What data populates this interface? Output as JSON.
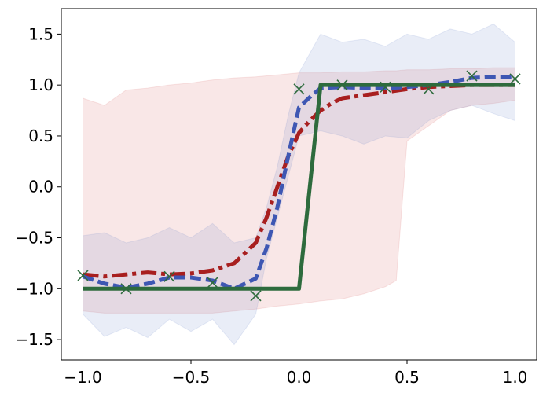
{
  "chart_data": {
    "type": "line",
    "title": "",
    "xlabel": "",
    "ylabel": "",
    "xlim": [
      -1.1,
      1.1
    ],
    "ylim": [
      -1.7,
      1.75
    ],
    "grid": false,
    "x_ticks": [
      -1.0,
      -0.5,
      0.0,
      0.5,
      1.0
    ],
    "y_ticks": [
      -1.5,
      -1.0,
      -0.5,
      0.0,
      0.5,
      1.0,
      1.5
    ],
    "x_tick_labels": [
      "−1.0",
      "−0.5",
      "0.0",
      "0.5",
      "1.0"
    ],
    "y_tick_labels": [
      "−1.5",
      "−1.0",
      "−0.5",
      "0.0",
      "0.5",
      "1.0",
      "1.5"
    ],
    "bands": [
      {
        "color": "#d95f5f",
        "opacity": 0.15,
        "x": [
          -1.0,
          -0.9,
          -0.8,
          -0.7,
          -0.6,
          -0.5,
          -0.4,
          -0.3,
          -0.2,
          -0.1,
          0.0,
          0.1,
          0.2,
          0.3,
          0.4,
          0.45,
          0.5,
          0.6,
          0.7,
          0.8,
          0.9,
          1.0
        ],
        "upper": [
          0.87,
          0.8,
          0.95,
          0.97,
          1.0,
          1.02,
          1.05,
          1.07,
          1.08,
          1.1,
          1.12,
          1.12,
          1.13,
          1.13,
          1.14,
          1.14,
          1.15,
          1.15,
          1.16,
          1.16,
          1.17,
          1.17
        ],
        "lower": [
          -1.22,
          -1.24,
          -1.24,
          -1.24,
          -1.24,
          -1.24,
          -1.24,
          -1.22,
          -1.2,
          -1.17,
          -1.15,
          -1.12,
          -1.1,
          -1.05,
          -0.98,
          -0.92,
          0.45,
          0.6,
          0.75,
          0.8,
          0.82,
          0.85
        ]
      },
      {
        "color": "#6a85c8",
        "opacity": 0.15,
        "x": [
          -1.0,
          -0.9,
          -0.8,
          -0.7,
          -0.6,
          -0.5,
          -0.4,
          -0.3,
          -0.2,
          -0.15,
          -0.1,
          -0.05,
          0.0,
          0.1,
          0.2,
          0.3,
          0.4,
          0.5,
          0.6,
          0.7,
          0.8,
          0.9,
          1.0
        ],
        "upper": [
          -0.48,
          -0.45,
          -0.55,
          -0.5,
          -0.4,
          -0.5,
          -0.36,
          -0.55,
          -0.5,
          -0.2,
          0.2,
          0.7,
          1.12,
          1.5,
          1.42,
          1.45,
          1.38,
          1.5,
          1.45,
          1.55,
          1.5,
          1.6,
          1.42
        ],
        "lower": [
          -1.25,
          -1.47,
          -1.38,
          -1.48,
          -1.3,
          -1.42,
          -1.3,
          -1.55,
          -1.25,
          -0.7,
          -0.3,
          0.1,
          0.5,
          0.55,
          0.5,
          0.42,
          0.5,
          0.48,
          0.65,
          0.75,
          0.8,
          0.72,
          0.65
        ]
      }
    ],
    "series": [
      {
        "color": "#a81f1f",
        "style": "dash-dot",
        "x": [
          -1.0,
          -0.9,
          -0.8,
          -0.7,
          -0.6,
          -0.5,
          -0.4,
          -0.3,
          -0.2,
          -0.15,
          -0.1,
          -0.05,
          0.0,
          0.05,
          0.1,
          0.15,
          0.2,
          0.3,
          0.4,
          0.5,
          0.6,
          0.7,
          0.8,
          0.9,
          1.0
        ],
        "y": [
          -0.86,
          -0.88,
          -0.86,
          -0.84,
          -0.86,
          -0.85,
          -0.82,
          -0.75,
          -0.55,
          -0.3,
          0.0,
          0.3,
          0.53,
          0.65,
          0.75,
          0.82,
          0.87,
          0.9,
          0.93,
          0.96,
          0.98,
          0.99,
          1.0,
          1.0,
          1.0
        ]
      },
      {
        "color": "#3e57b3",
        "style": "dash",
        "x": [
          -1.0,
          -0.9,
          -0.8,
          -0.7,
          -0.6,
          -0.5,
          -0.4,
          -0.3,
          -0.2,
          -0.15,
          -0.1,
          -0.05,
          0.0,
          0.05,
          0.1,
          0.2,
          0.3,
          0.4,
          0.5,
          0.6,
          0.7,
          0.8,
          0.9,
          1.0
        ],
        "y": [
          -0.88,
          -0.95,
          -0.99,
          -0.95,
          -0.89,
          -0.89,
          -0.92,
          -1.0,
          -0.9,
          -0.6,
          -0.2,
          0.3,
          0.78,
          0.88,
          0.97,
          0.98,
          0.97,
          0.97,
          0.98,
          1.0,
          1.03,
          1.07,
          1.08,
          1.08
        ]
      },
      {
        "color": "#2e6b3d",
        "style": "solid",
        "x": [
          -1.0,
          0.0,
          0.1,
          1.0
        ],
        "y": [
          -1.0,
          -1.0,
          1.0,
          1.0
        ]
      }
    ],
    "markers": {
      "color": "#2e6b3d",
      "shape": "x",
      "x": [
        -1.0,
        -0.8,
        -0.6,
        -0.4,
        -0.2,
        0.0,
        0.2,
        0.4,
        0.6,
        0.8,
        1.0
      ],
      "y": [
        -0.87,
        -1.0,
        -0.88,
        -0.94,
        -1.07,
        0.96,
        1.0,
        0.98,
        0.96,
        1.09,
        1.06
      ]
    }
  }
}
